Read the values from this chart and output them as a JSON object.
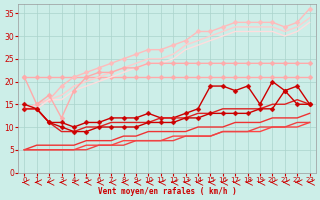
{
  "background_color": "#cceee8",
  "grid_color": "#aad4cc",
  "xlabel": "Vent moyen/en rafales ( km/h )",
  "xlabel_color": "#cc0000",
  "tick_color": "#cc0000",
  "xlim": [
    -0.5,
    23.5
  ],
  "ylim": [
    0,
    37
  ],
  "yticks": [
    0,
    5,
    10,
    15,
    20,
    25,
    30,
    35
  ],
  "xticks": [
    0,
    1,
    2,
    3,
    4,
    5,
    6,
    7,
    8,
    9,
    10,
    11,
    12,
    13,
    14,
    15,
    16,
    17,
    18,
    19,
    20,
    21,
    22,
    23
  ],
  "lines": [
    {
      "x": [
        0,
        1,
        2,
        3,
        4,
        5,
        6,
        7,
        8,
        9,
        10,
        11,
        12,
        13,
        14,
        15,
        16,
        17,
        18,
        19,
        20,
        21,
        22,
        23
      ],
      "y": [
        21,
        21,
        21,
        21,
        21,
        21,
        21,
        21,
        21,
        21,
        21,
        21,
        21,
        21,
        21,
        21,
        21,
        21,
        21,
        21,
        21,
        21,
        21,
        21
      ],
      "color": "#ffaaaa",
      "lw": 1.0,
      "marker": "D",
      "ms": 2.5
    },
    {
      "x": [
        0,
        1,
        2,
        3,
        4,
        5,
        6,
        7,
        8,
        9,
        10,
        11,
        12,
        13,
        14,
        15,
        16,
        17,
        18,
        19,
        20,
        21,
        22,
        23
      ],
      "y": [
        14,
        15,
        16,
        19,
        21,
        22,
        23,
        24,
        25,
        26,
        27,
        27,
        28,
        29,
        31,
        31,
        32,
        33,
        33,
        33,
        33,
        32,
        33,
        36
      ],
      "color": "#ffbbbb",
      "lw": 1.0,
      "marker": "D",
      "ms": 2.5
    },
    {
      "x": [
        0,
        1,
        2,
        3,
        4,
        5,
        6,
        7,
        8,
        9,
        10,
        11,
        12,
        13,
        14,
        15,
        16,
        17,
        18,
        19,
        20,
        21,
        22,
        23
      ],
      "y": [
        14,
        15,
        16,
        17,
        19,
        20,
        21,
        22,
        23,
        24,
        25,
        25,
        26,
        28,
        29,
        30,
        31,
        32,
        32,
        32,
        32,
        31,
        32,
        34
      ],
      "color": "#ffcccc",
      "lw": 1.0,
      "marker": null,
      "ms": 0
    },
    {
      "x": [
        0,
        1,
        2,
        3,
        4,
        5,
        6,
        7,
        8,
        9,
        10,
        11,
        12,
        13,
        14,
        15,
        16,
        17,
        18,
        19,
        20,
        21,
        22,
        23
      ],
      "y": [
        14,
        14,
        16,
        16,
        18,
        19,
        20,
        21,
        22,
        23,
        24,
        24,
        25,
        27,
        28,
        29,
        30,
        31,
        31,
        31,
        31,
        30,
        31,
        33
      ],
      "color": "#ffdddd",
      "lw": 1.0,
      "marker": null,
      "ms": 0
    },
    {
      "x": [
        0,
        1,
        2,
        3,
        4,
        5,
        6,
        7,
        8,
        9,
        10,
        11,
        12,
        13,
        14,
        15,
        16,
        17,
        18,
        19,
        20,
        21,
        22,
        23
      ],
      "y": [
        21,
        15,
        17,
        12,
        18,
        21,
        22,
        22,
        23,
        23,
        24,
        24,
        24,
        24,
        24,
        24,
        24,
        24,
        24,
        24,
        24,
        24,
        24,
        24
      ],
      "color": "#ffaaaa",
      "lw": 1.0,
      "marker": "D",
      "ms": 2.5
    },
    {
      "x": [
        0,
        1,
        2,
        3,
        4,
        5,
        6,
        7,
        8,
        9,
        10,
        11,
        12,
        13,
        14,
        15,
        16,
        17,
        18,
        19,
        20,
        21,
        22,
        23
      ],
      "y": [
        14,
        14,
        11,
        11,
        10,
        11,
        11,
        12,
        12,
        12,
        13,
        12,
        12,
        13,
        14,
        19,
        19,
        18,
        19,
        15,
        20,
        18,
        19,
        15
      ],
      "color": "#cc0000",
      "lw": 1.0,
      "marker": "D",
      "ms": 2.5
    },
    {
      "x": [
        0,
        1,
        2,
        3,
        4,
        5,
        6,
        7,
        8,
        9,
        10,
        11,
        12,
        13,
        14,
        15,
        16,
        17,
        18,
        19,
        20,
        21,
        22,
        23
      ],
      "y": [
        14,
        14,
        11,
        9,
        9,
        10,
        10,
        11,
        11,
        11,
        11,
        12,
        12,
        12,
        13,
        13,
        14,
        14,
        14,
        14,
        15,
        15,
        16,
        15
      ],
      "color": "#dd2222",
      "lw": 1.0,
      "marker": null,
      "ms": 0
    },
    {
      "x": [
        0,
        1,
        2,
        3,
        4,
        5,
        6,
        7,
        8,
        9,
        10,
        11,
        12,
        13,
        14,
        15,
        16,
        17,
        18,
        19,
        20,
        21,
        22,
        23
      ],
      "y": [
        5,
        6,
        6,
        6,
        6,
        7,
        7,
        7,
        8,
        8,
        9,
        9,
        9,
        9,
        10,
        10,
        10,
        11,
        11,
        11,
        12,
        12,
        12,
        13
      ],
      "color": "#ee3333",
      "lw": 1.0,
      "marker": null,
      "ms": 0
    },
    {
      "x": [
        0,
        1,
        2,
        3,
        4,
        5,
        6,
        7,
        8,
        9,
        10,
        11,
        12,
        13,
        14,
        15,
        16,
        17,
        18,
        19,
        20,
        21,
        22,
        23
      ],
      "y": [
        5,
        5,
        5,
        5,
        5,
        6,
        6,
        6,
        7,
        7,
        7,
        7,
        8,
        8,
        8,
        8,
        9,
        9,
        9,
        9,
        10,
        10,
        10,
        11
      ],
      "color": "#ff4444",
      "lw": 1.0,
      "marker": null,
      "ms": 0
    },
    {
      "x": [
        0,
        1,
        2,
        3,
        4,
        5,
        6,
        7,
        8,
        9,
        10,
        11,
        12,
        13,
        14,
        15,
        16,
        17,
        18,
        19,
        20,
        21,
        22,
        23
      ],
      "y": [
        15,
        14,
        11,
        10,
        9,
        9,
        10,
        10,
        10,
        10,
        11,
        11,
        11,
        12,
        12,
        13,
        13,
        13,
        13,
        14,
        14,
        18,
        15,
        15
      ],
      "color": "#cc0000",
      "lw": 1.0,
      "marker": "D",
      "ms": 2.5
    },
    {
      "x": [
        0,
        1,
        2,
        3,
        4,
        5,
        6,
        7,
        8,
        9,
        10,
        11,
        12,
        13,
        14,
        15,
        16,
        17,
        18,
        19,
        20,
        21,
        22,
        23
      ],
      "y": [
        5,
        5,
        5,
        5,
        5,
        5,
        6,
        6,
        6,
        7,
        7,
        7,
        7,
        8,
        8,
        8,
        9,
        9,
        9,
        10,
        10,
        10,
        11,
        11
      ],
      "color": "#ee4444",
      "lw": 1.0,
      "marker": null,
      "ms": 0
    }
  ]
}
